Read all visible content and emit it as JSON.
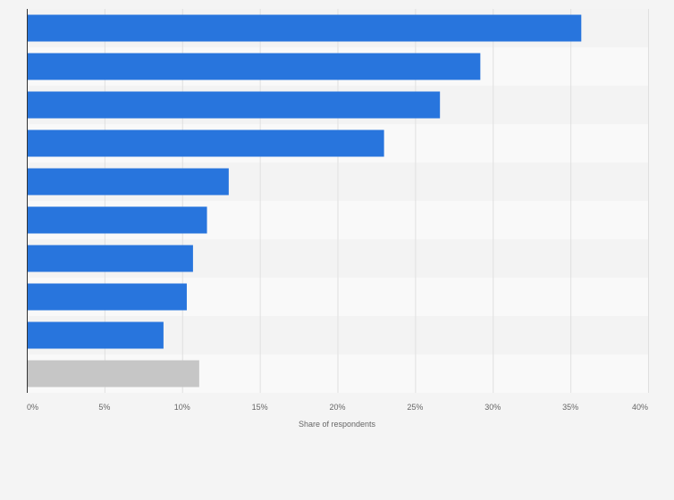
{
  "chart_data": {
    "type": "bar",
    "orientation": "horizontal",
    "title": "",
    "xlabel": "Share of respondents",
    "ylabel": "",
    "xlim": [
      0,
      40
    ],
    "x_ticks": [
      0,
      5,
      10,
      15,
      20,
      25,
      30,
      35,
      40
    ],
    "x_tick_labels": [
      "0%",
      "5%",
      "10%",
      "15%",
      "20%",
      "25%",
      "30%",
      "35%",
      "40%"
    ],
    "categories": [
      "",
      "",
      "",
      "",
      "",
      "",
      "",
      "",
      "",
      ""
    ],
    "values": [
      35.7,
      29.2,
      26.6,
      23.0,
      13.0,
      11.6,
      10.7,
      10.3,
      8.8,
      11.1
    ],
    "bar_colors": [
      "#2875dd",
      "#2875dd",
      "#2875dd",
      "#2875dd",
      "#2875dd",
      "#2875dd",
      "#2875dd",
      "#2875dd",
      "#2875dd",
      "#c6c6c6"
    ],
    "grid": true,
    "legend": "none"
  },
  "colors": {
    "background": "#f4f4f4",
    "band_light": "#f9f9f9",
    "band_dark": "#f3f3f3",
    "gridline": "#e0e0e0",
    "axis": "#333333"
  }
}
